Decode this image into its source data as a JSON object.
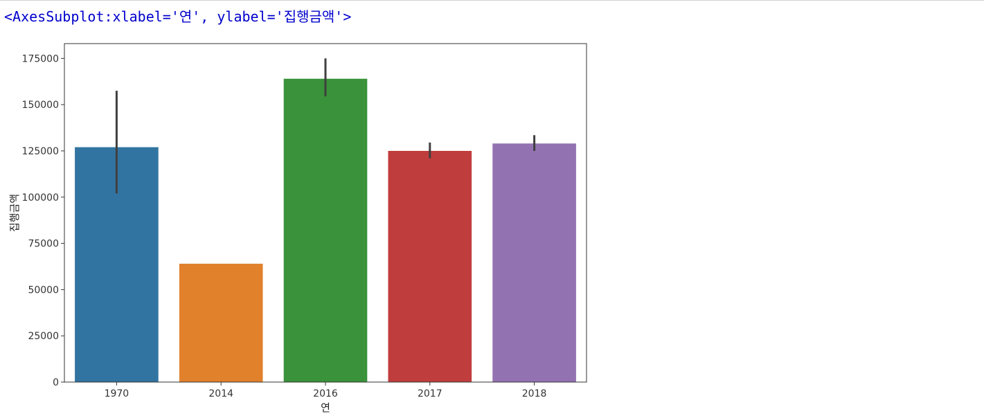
{
  "output": {
    "repr_text": "<AxesSubplot:xlabel='연', ylabel='집행금액'>"
  },
  "colors": {
    "repr_text": "#0000cc",
    "axes_frame": "#333333",
    "error_bar": "#3f3f3f"
  },
  "chart_data": {
    "type": "bar",
    "categories": [
      "1970",
      "2014",
      "2016",
      "2017",
      "2018"
    ],
    "values": [
      127000,
      64000,
      164000,
      125000,
      129000
    ],
    "error_bars": [
      {
        "low": 102000,
        "high": 157500
      },
      null,
      {
        "low": 154500,
        "high": 175000
      },
      {
        "low": 121000,
        "high": 129500
      },
      {
        "low": 125000,
        "high": 133500
      }
    ],
    "colors": [
      "#3274a1",
      "#e1812c",
      "#3a923a",
      "#c03d3e",
      "#9372b2"
    ],
    "xlabel": "연",
    "ylabel": "집행금액",
    "ylim": [
      0,
      183000
    ],
    "yticks": [
      0,
      25000,
      50000,
      75000,
      100000,
      125000,
      150000,
      175000
    ],
    "ytick_labels": [
      "0",
      "25000",
      "50000",
      "75000",
      "100000",
      "125000",
      "150000",
      "175000"
    ],
    "grid": false,
    "legend": "none"
  }
}
